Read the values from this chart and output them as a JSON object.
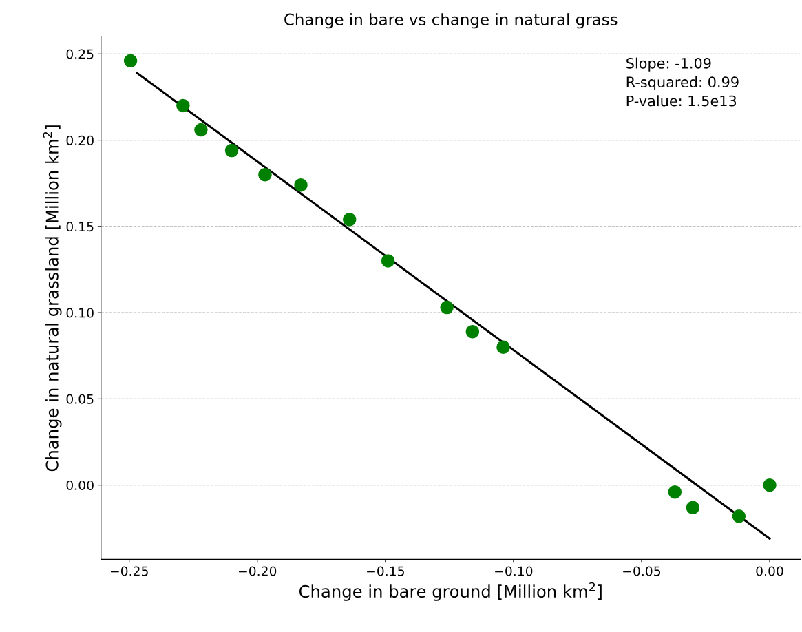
{
  "chart_data": {
    "type": "scatter",
    "title": "Change in bare vs change in natural grass",
    "xlabel": "Change in bare ground [Million km$^{2}$]",
    "ylabel": "Change in natural grassland [Million km$^{2}$]",
    "x": [
      -0.2495,
      -0.229,
      -0.222,
      -0.21,
      -0.197,
      -0.183,
      -0.164,
      -0.149,
      -0.126,
      -0.116,
      -0.104,
      -0.037,
      -0.03,
      -0.012,
      0.0
    ],
    "series": [
      {
        "type": "scatter",
        "color": "#008000",
        "marker": "circle",
        "values": [
          0.246,
          0.22,
          0.206,
          0.194,
          0.18,
          0.174,
          0.154,
          0.13,
          0.103,
          0.089,
          0.08,
          -0.004,
          -0.013,
          -0.018,
          0.0
        ]
      },
      {
        "type": "line",
        "color": "#000000",
        "line_style": "solid",
        "marker": "none",
        "x": [
          -0.247,
          0.0
        ],
        "values": [
          0.239,
          -0.031
        ]
      }
    ],
    "annotations": [
      "Slope: -1.09",
      "R-squared: 0.99",
      "P-value: 1.5e13"
    ],
    "xlim": [
      -0.261,
      0.012
    ],
    "ylim": [
      -0.043,
      0.26
    ],
    "xticks": [
      {
        "value": -0.25,
        "label": "−0.25"
      },
      {
        "value": -0.2,
        "label": "−0.20"
      },
      {
        "value": -0.15,
        "label": "−0.15"
      },
      {
        "value": -0.1,
        "label": "−0.10"
      },
      {
        "value": -0.05,
        "label": "−0.05"
      },
      {
        "value": 0.0,
        "label": "0.00"
      }
    ],
    "yticks": [
      {
        "value": 0.0,
        "label": "0.00"
      },
      {
        "value": 0.05,
        "label": "0.05"
      },
      {
        "value": 0.1,
        "label": "0.10"
      },
      {
        "value": 0.15,
        "label": "0.15"
      },
      {
        "value": 0.2,
        "label": "0.20"
      },
      {
        "value": 0.25,
        "label": "0.25"
      }
    ],
    "grid": "y",
    "legend": false
  }
}
